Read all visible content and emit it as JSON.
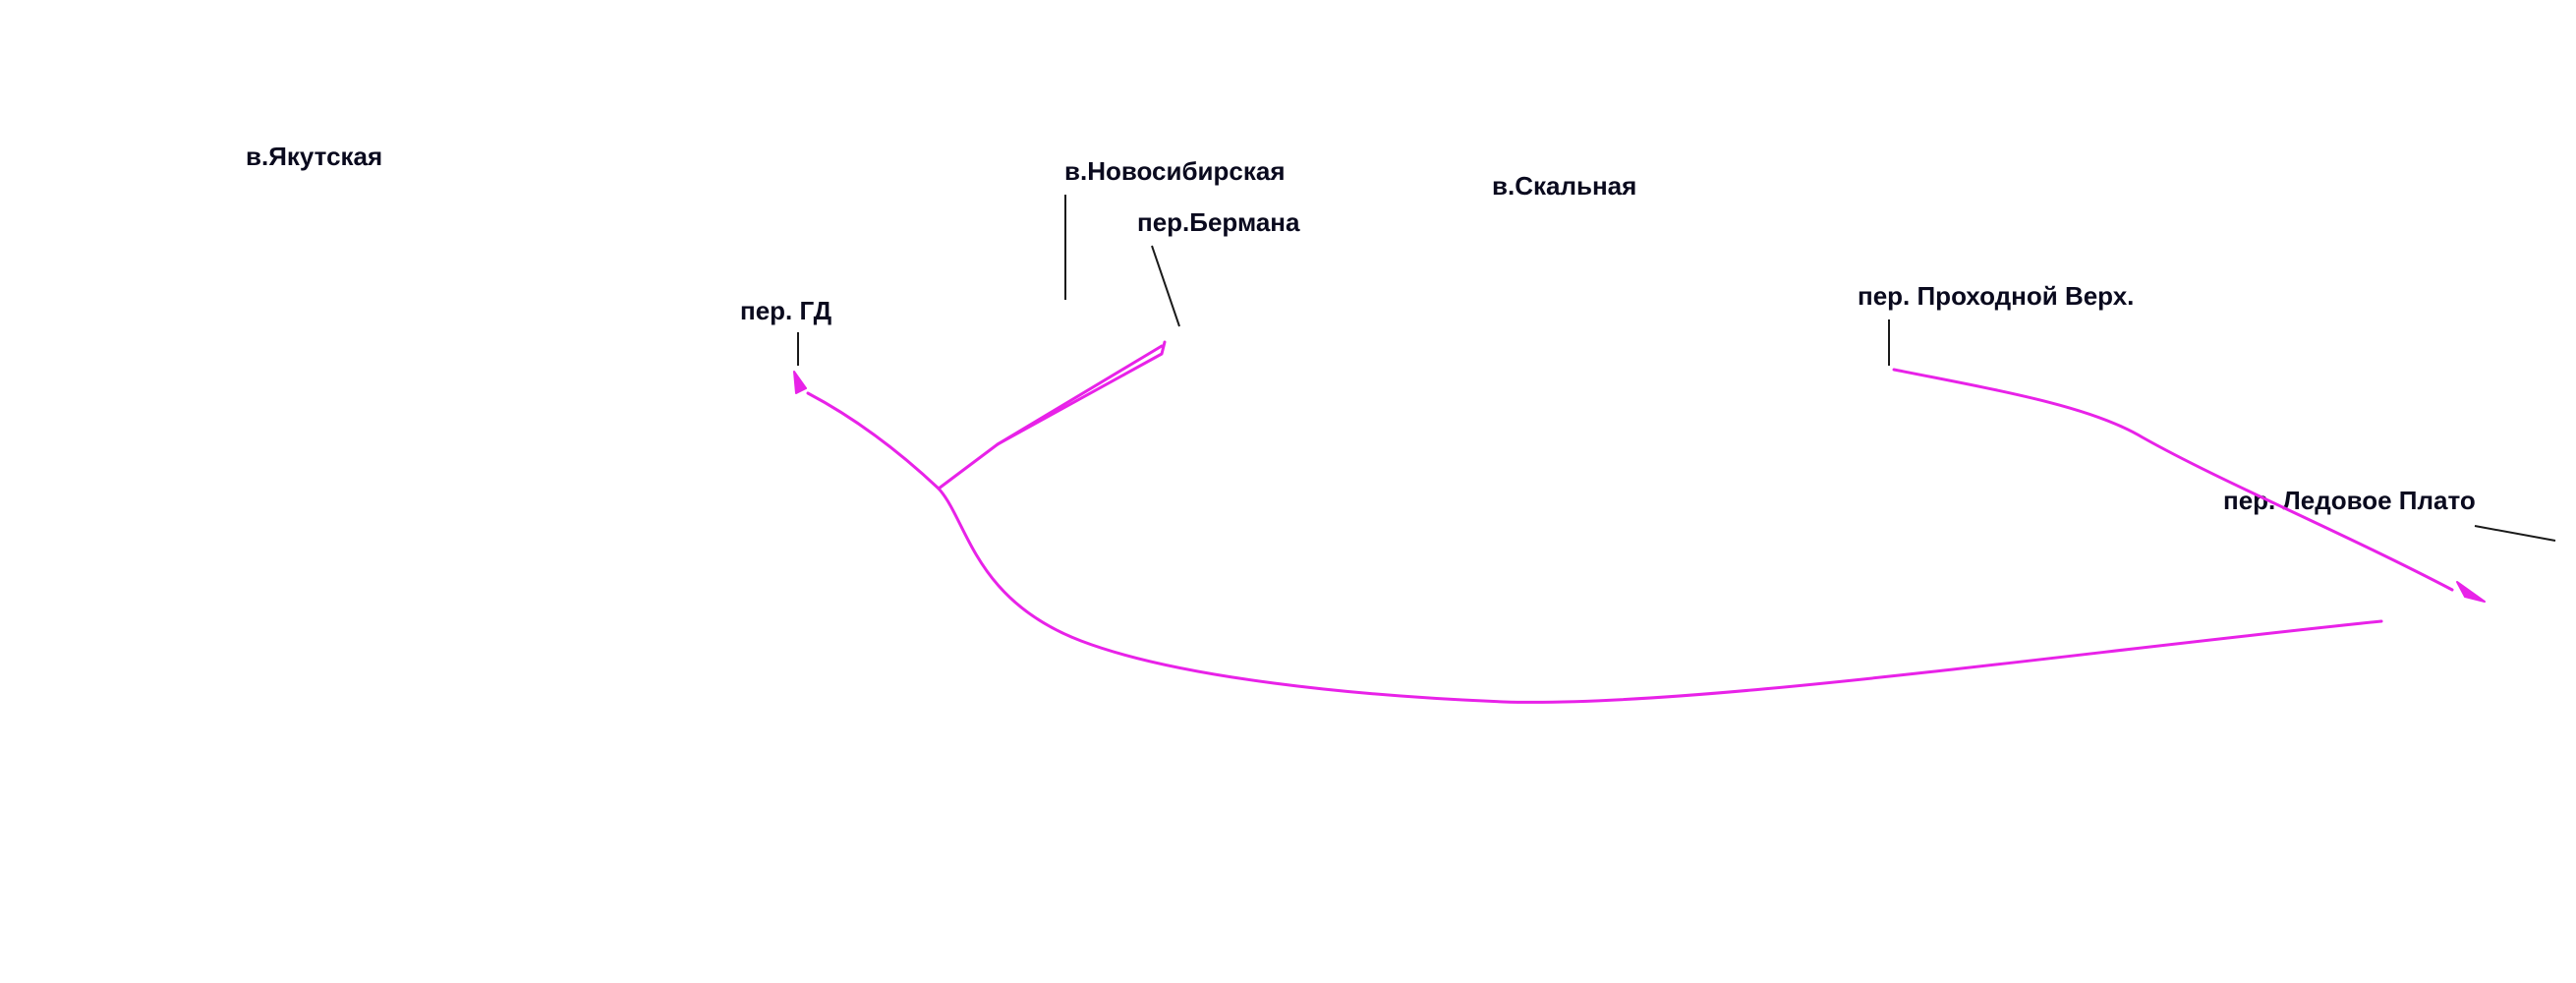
{
  "colors": {
    "route": "#e822e8",
    "label_text": "#0a0a1e",
    "leader": "#1a1a1a",
    "background": "#ffffff"
  },
  "labels": {
    "yakutskaya": "в.Якутская",
    "novosibirskaya": "в.Новосибирская",
    "skalnaya": "в.Скальная",
    "bermana": "пер.Бермана",
    "gd": "пер. ГД",
    "prokhodnoy": "пер. Проходной Верх.",
    "ledovoe": "пер. Ледовое Плато"
  }
}
